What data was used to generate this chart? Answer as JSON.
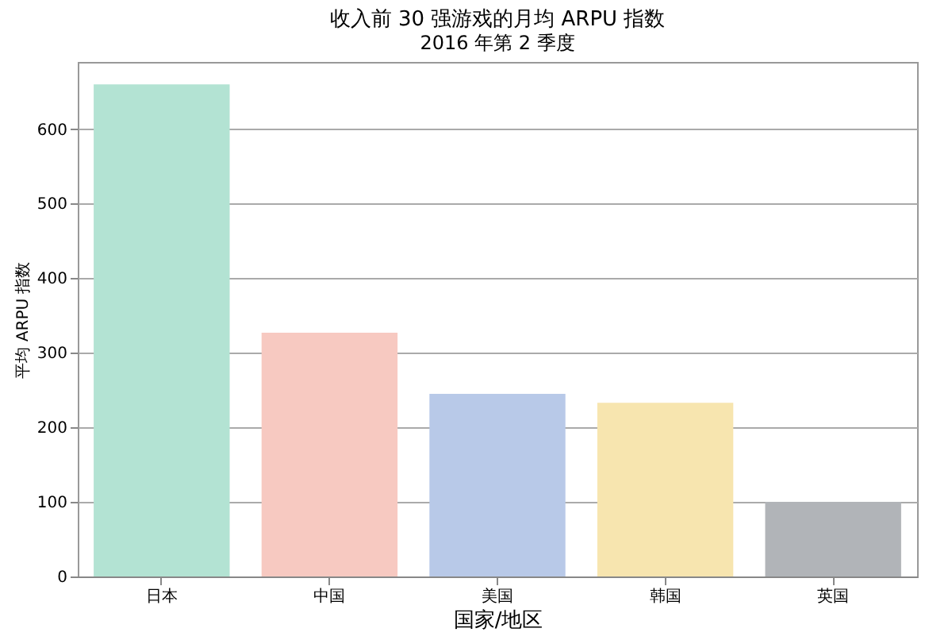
{
  "chart_data": {
    "type": "bar",
    "title": "收入前 30 强游戏的月均 ARPU 指数",
    "subtitle": "2016 年第 2 季度",
    "xlabel": "国家/地区",
    "ylabel": "平均 ARPU 指数",
    "categories": [
      "日本",
      "中国",
      "美国",
      "韩国",
      "英国"
    ],
    "values": [
      660,
      327,
      245,
      233,
      100
    ],
    "colors": [
      "#b3e3d3",
      "#f7c9c1",
      "#b8c9e8",
      "#f7e5af",
      "#b1b4b8"
    ],
    "ylim": [
      0,
      690
    ],
    "yticks": [
      0,
      100,
      200,
      300,
      400,
      500,
      600
    ],
    "grid": "y"
  }
}
